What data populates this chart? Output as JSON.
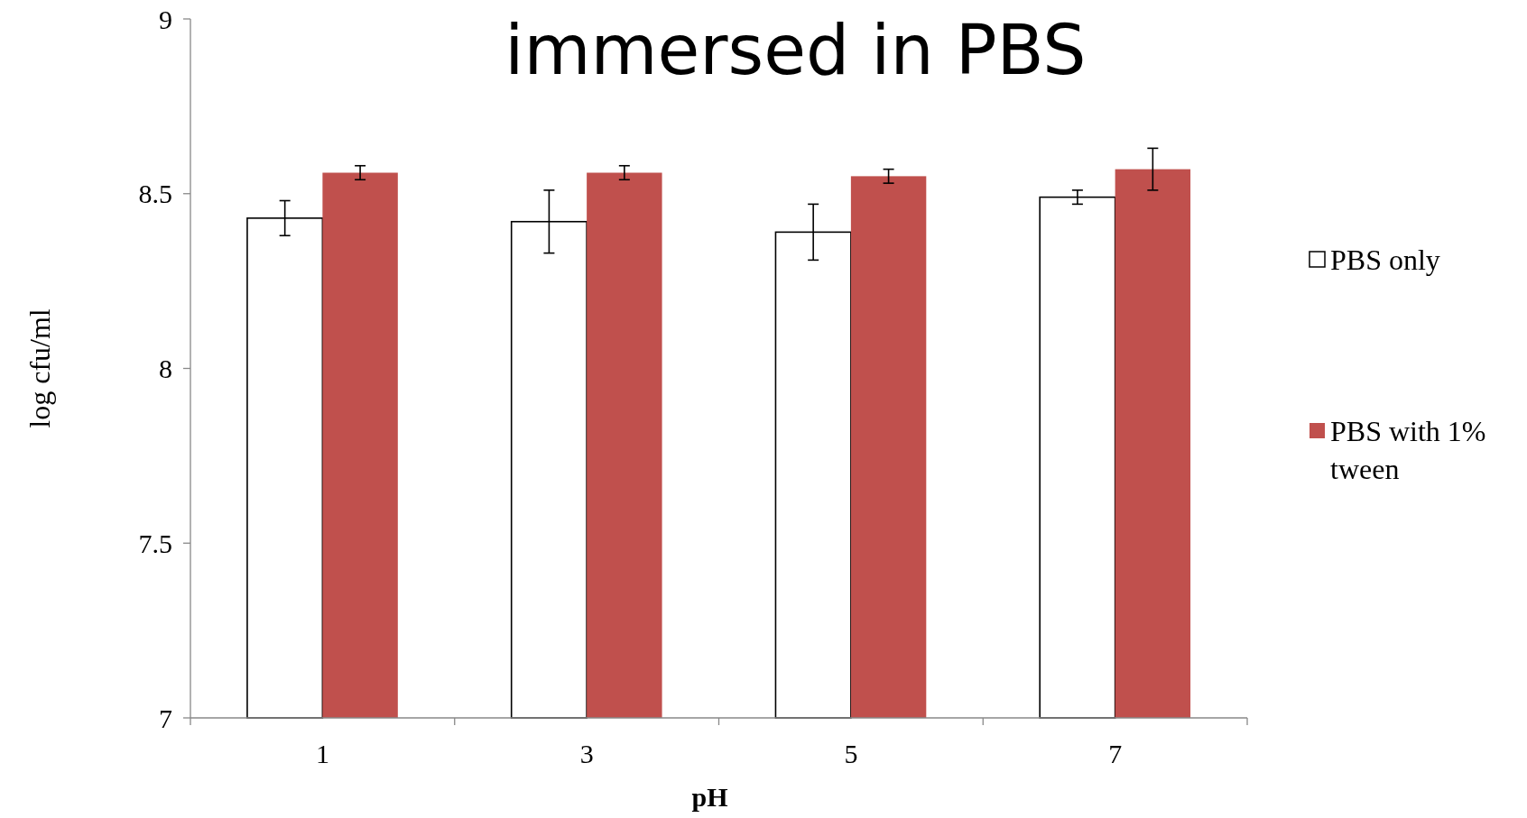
{
  "chart_data": {
    "type": "bar",
    "title": "immersed in PBS",
    "xlabel": "pH",
    "ylabel": "log cfu/ml",
    "categories": [
      "1",
      "3",
      "5",
      "7"
    ],
    "series": [
      {
        "name": "PBS only",
        "color": "#ffffff",
        "values": [
          8.43,
          8.42,
          8.39,
          8.49
        ],
        "errors": [
          0.05,
          0.09,
          0.08,
          0.02
        ]
      },
      {
        "name": "PBS with 1% tween",
        "color": "#c0504d",
        "values": [
          8.56,
          8.56,
          8.55,
          8.57
        ],
        "errors": [
          0.02,
          0.02,
          0.02,
          0.06
        ]
      }
    ],
    "ylim": [
      7,
      9
    ],
    "yticks": [
      7,
      {
        "value": 7.5,
        "label": "7.5"
      },
      8,
      {
        "value": 8.5,
        "label": "8.5"
      },
      9
    ],
    "grid": false,
    "legend": "right"
  }
}
